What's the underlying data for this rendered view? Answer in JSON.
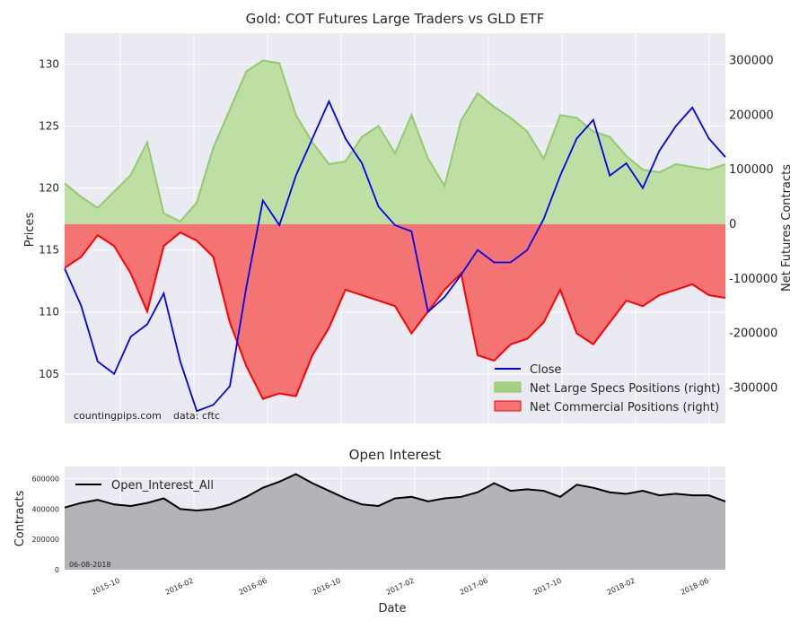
{
  "chart_data": [
    {
      "type": "line",
      "title": "Gold: COT Futures Large Traders vs GLD ETF",
      "ylabel": "Prices",
      "ylabel_right": "Net Futures Contracts",
      "ylim": [
        101,
        132.5
      ],
      "ylim_right": [
        -365000,
        350000
      ],
      "y_ticks": [
        105,
        110,
        115,
        120,
        125,
        130
      ],
      "y_ticks_right": [
        -300000,
        -200000,
        -100000,
        0,
        100000,
        200000,
        300000
      ],
      "x": [
        0,
        0.025,
        0.05,
        0.075,
        0.1,
        0.125,
        0.15,
        0.175,
        0.2,
        0.225,
        0.25,
        0.275,
        0.3,
        0.325,
        0.35,
        0.375,
        0.4,
        0.425,
        0.45,
        0.475,
        0.5,
        0.525,
        0.55,
        0.575,
        0.6,
        0.625,
        0.65,
        0.675,
        0.7,
        0.725,
        0.75,
        0.775,
        0.8,
        0.825,
        0.85,
        0.875,
        0.9,
        0.925,
        0.95,
        0.975,
        1.0
      ],
      "series": [
        {
          "name": "Close",
          "color": "#0000ee",
          "values": [
            113.5,
            110.5,
            106,
            105,
            108,
            109,
            111.5,
            106,
            102,
            102.5,
            104,
            112,
            119,
            117,
            121,
            124,
            127,
            124,
            122,
            118.5,
            117,
            116.5,
            110,
            111.2,
            113,
            115,
            114,
            114,
            115,
            117.5,
            121,
            124,
            125.5,
            121,
            122,
            120,
            123,
            125,
            126.5,
            124,
            122.5
          ]
        },
        {
          "name": "Net Large Specs Positions (right)",
          "color": "#a3d17f",
          "values": [
            75000,
            50000,
            30000,
            60000,
            90000,
            150000,
            20000,
            5000,
            40000,
            140000,
            210000,
            280000,
            300000,
            295000,
            200000,
            150000,
            110000,
            115000,
            160000,
            180000,
            130000,
            200000,
            120000,
            70000,
            190000,
            240000,
            215000,
            195000,
            170000,
            120000,
            200000,
            195000,
            170000,
            160000,
            125000,
            100000,
            95000,
            110000,
            105000,
            100000,
            110000
          ]
        },
        {
          "name": "Net Commercial Positions (right)",
          "color": "#ff0000",
          "values": [
            -80000,
            -60000,
            -20000,
            -40000,
            -90000,
            -160000,
            -40000,
            -15000,
            -30000,
            -60000,
            -180000,
            -260000,
            -320000,
            -310000,
            -315000,
            -240000,
            -190000,
            -120000,
            -130000,
            -140000,
            -150000,
            -200000,
            -160000,
            -120000,
            -90000,
            -240000,
            -250000,
            -220000,
            -210000,
            -180000,
            -120000,
            -200000,
            -220000,
            -180000,
            -140000,
            -150000,
            -130000,
            -120000,
            -110000,
            -130000,
            -135000
          ]
        }
      ],
      "legend": "bottom-right",
      "annotations": [
        "countingpips.com",
        "data: cftc"
      ]
    },
    {
      "type": "area",
      "title": "Open Interest",
      "xlabel": "Date",
      "ylabel": "Contracts",
      "ylim": [
        0,
        680000
      ],
      "y_ticks": [
        0,
        200000,
        400000,
        600000
      ],
      "x_ticks": [
        "2015-10",
        "2016-02",
        "2016-06",
        "2016-10",
        "2017-02",
        "2017-06",
        "2017-10",
        "2018-02",
        "2018-06"
      ],
      "series": [
        {
          "name": "Open_Interest_All",
          "color": "#000000",
          "values": [
            410000,
            440000,
            460000,
            430000,
            420000,
            440000,
            470000,
            400000,
            390000,
            400000,
            430000,
            480000,
            540000,
            580000,
            630000,
            570000,
            520000,
            470000,
            430000,
            420000,
            470000,
            480000,
            450000,
            470000,
            480000,
            510000,
            570000,
            520000,
            530000,
            520000,
            480000,
            560000,
            540000,
            510000,
            500000,
            520000,
            490000,
            500000,
            490000,
            490000,
            450000
          ]
        }
      ],
      "legend": "top-left",
      "annotations": [
        "06-08-2018"
      ]
    }
  ]
}
